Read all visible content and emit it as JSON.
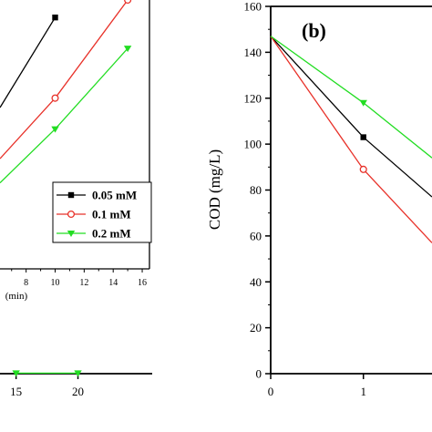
{
  "chart_data": [
    {
      "type": "line",
      "panel": "inset (partial, left)",
      "xlabel": "(min)",
      "x_ticks": [
        "8",
        "10",
        "12",
        "14",
        "16"
      ],
      "xlim": [
        6.2,
        16.5
      ],
      "ylim": [
        0,
        1
      ],
      "legend_position": "lower-right",
      "series": [
        {
          "name": "0.05 mM",
          "color": "#000000",
          "marker": "square",
          "x": [
            6.2,
            10
          ],
          "y": [
            0.6,
            0.935
          ]
        },
        {
          "name": "0.1 mM",
          "color": "#e8322a",
          "marker": "circle-open",
          "x": [
            6.2,
            10,
            15
          ],
          "y": [
            0.41,
            0.635,
            1.0
          ]
        },
        {
          "name": "0.2 mM",
          "color": "#22dd22",
          "marker": "triangle-down",
          "x": [
            6.2,
            10,
            15
          ],
          "y": [
            0.32,
            0.52,
            0.82
          ]
        }
      ]
    },
    {
      "type": "line",
      "panel": "bottom-left (partial)",
      "x_ticks": [
        "15",
        "20"
      ],
      "xlim": [
        13.7,
        26
      ],
      "ylim": [
        0,
        1
      ],
      "series": [
        {
          "name": "",
          "color": "#22dd22",
          "marker": "triangle-down",
          "x": [
            15,
            20
          ],
          "y": [
            0.02,
            0.02
          ]
        }
      ]
    },
    {
      "type": "line",
      "panel": "(b)",
      "title": "(b)",
      "xlabel": "",
      "ylabel": "COD (mg/L)",
      "y_ticks": [
        "0",
        "20",
        "40",
        "60",
        "80",
        "100",
        "120",
        "140",
        "160"
      ],
      "x_ticks": [
        "0",
        "1"
      ],
      "xlim": [
        0,
        1.74
      ],
      "ylim": [
        0,
        160
      ],
      "series": [
        {
          "name": "0.05 mM",
          "color": "#000000",
          "marker": "square",
          "x": [
            0,
            1,
            1.74
          ],
          "y": [
            147,
            103,
            77
          ]
        },
        {
          "name": "0.1 mM",
          "color": "#e8322a",
          "marker": "circle-open",
          "x": [
            0,
            1,
            1.74
          ],
          "y": [
            147,
            89,
            57
          ]
        },
        {
          "name": "0.2 mM",
          "color": "#22dd22",
          "marker": "triangle-down",
          "x": [
            0,
            1,
            1.74
          ],
          "y": [
            147,
            118,
            94
          ]
        }
      ]
    }
  ]
}
